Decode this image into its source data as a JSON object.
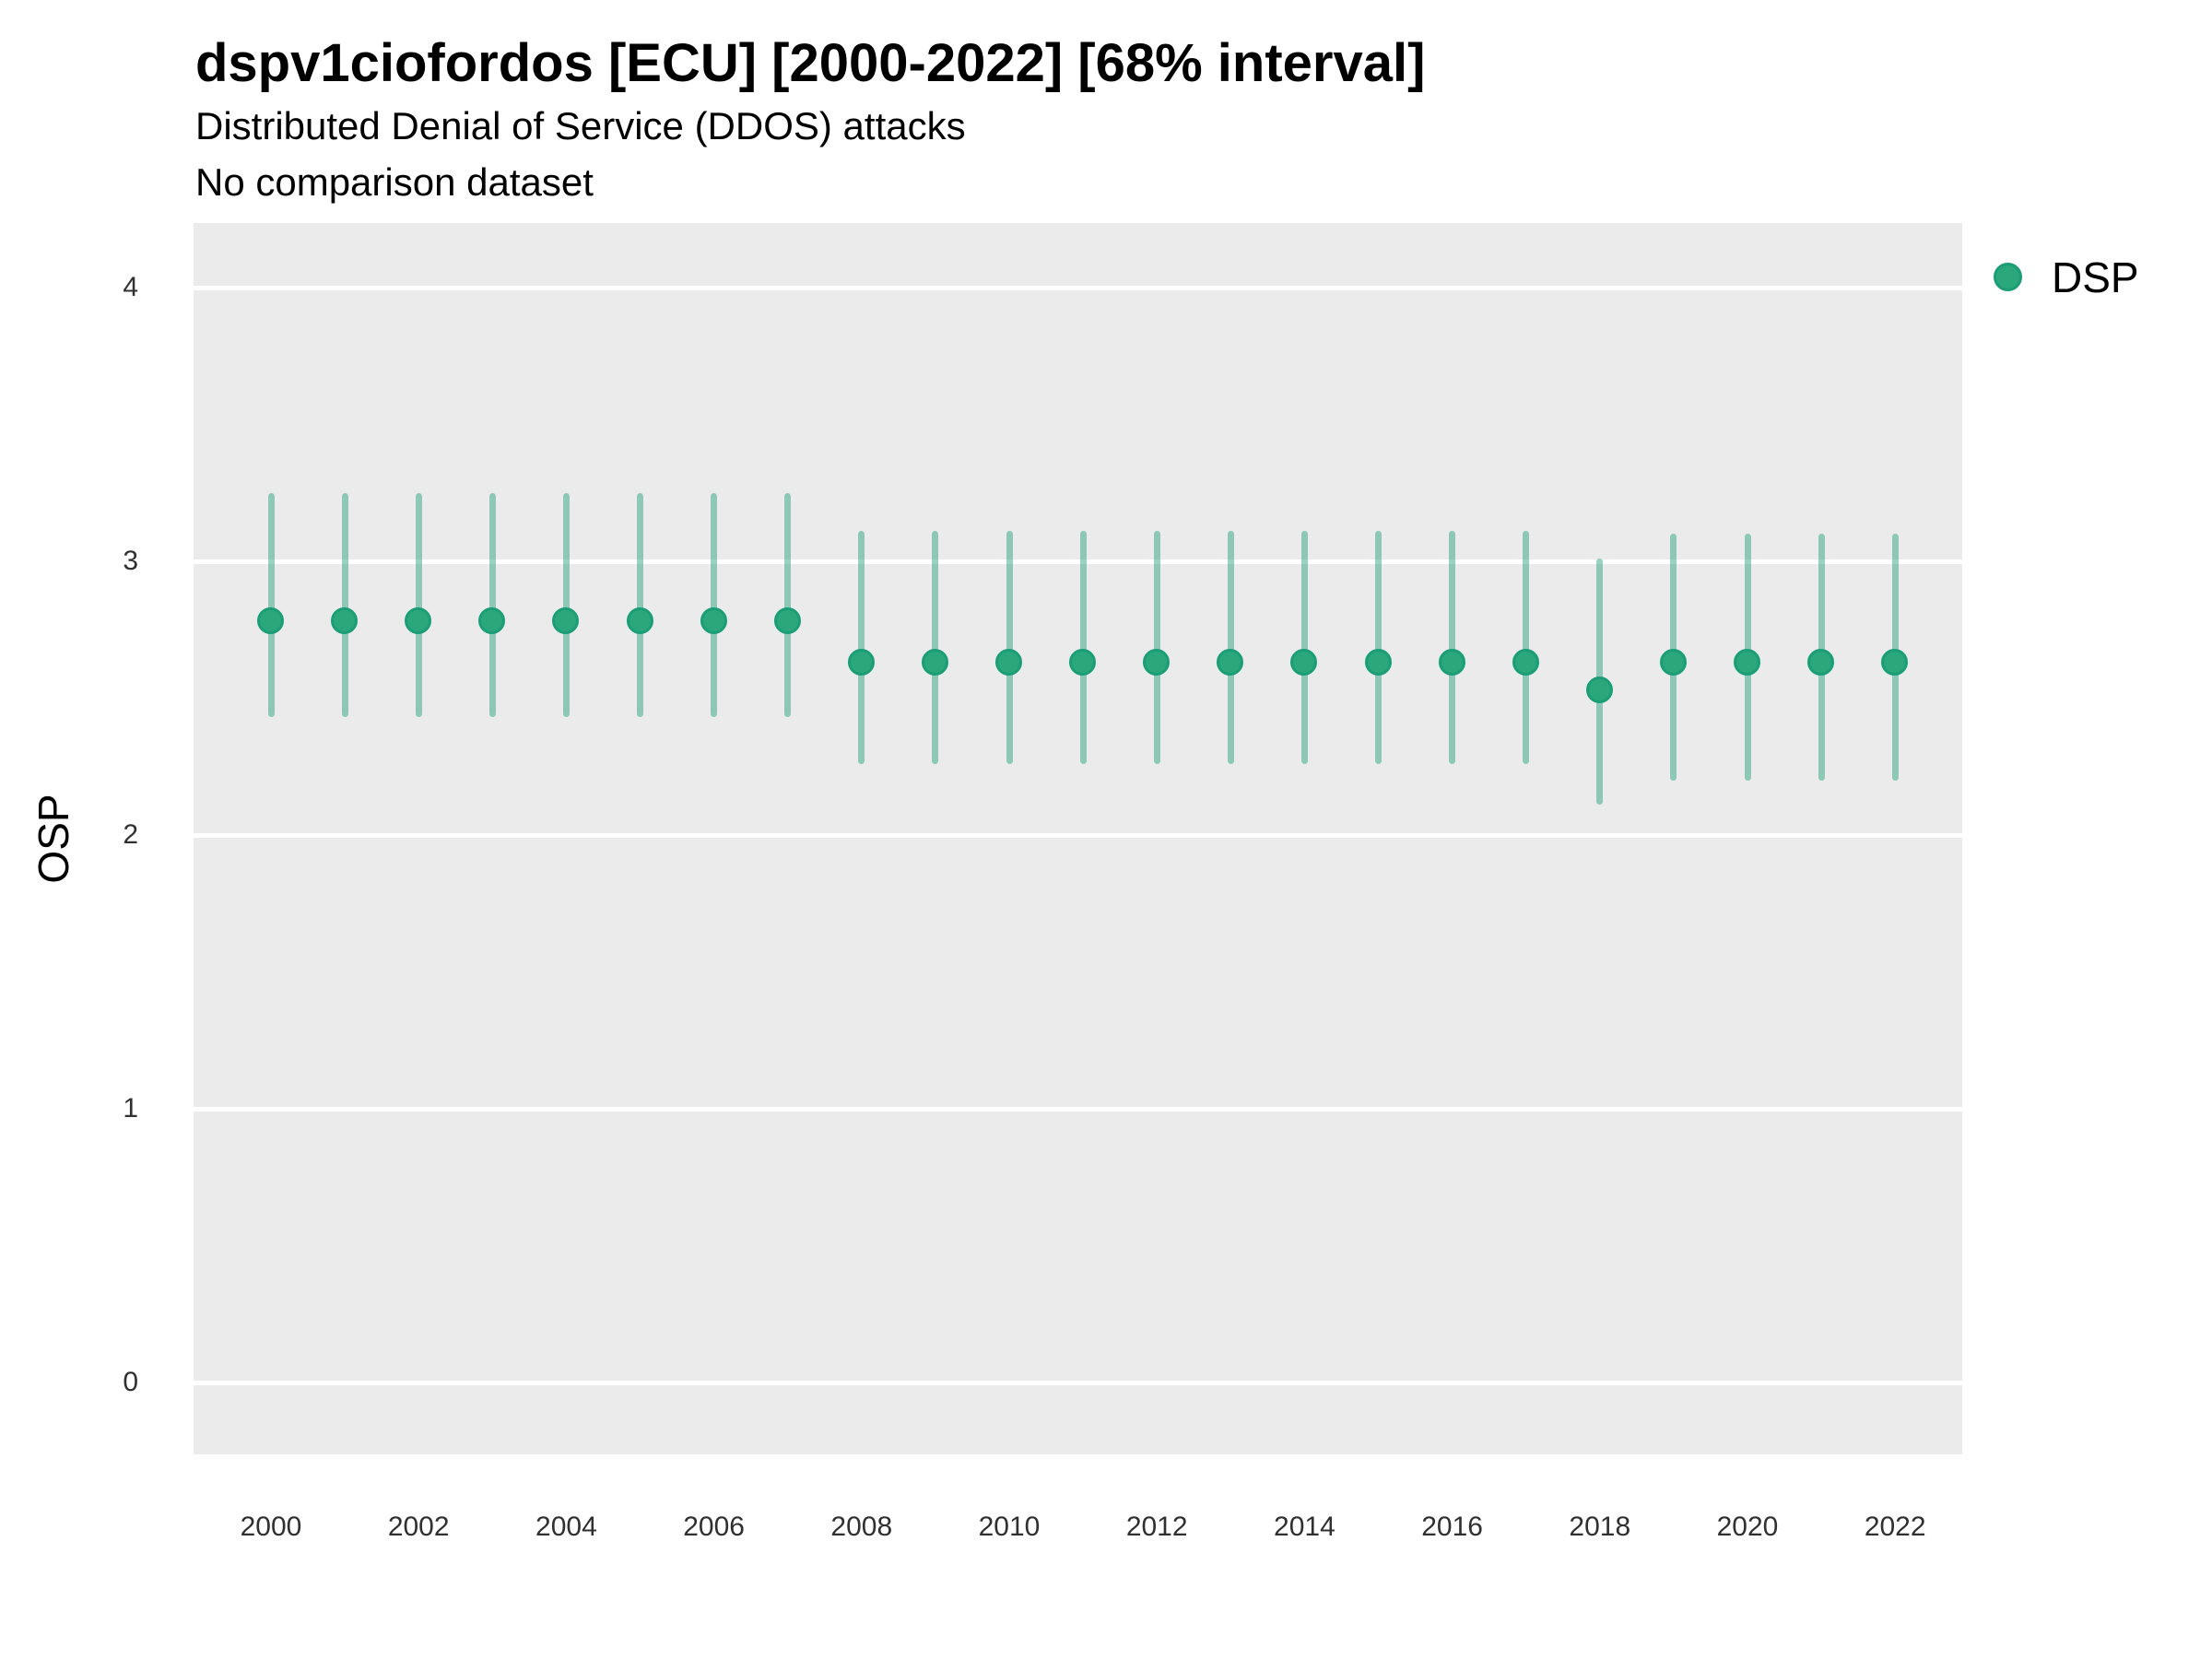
{
  "title": "dspv1ciofordos [ECU] [2000-2022] [68% interval]",
  "subtitle_line1": "Distributed Denial of Service (DDOS) attacks",
  "subtitle_line2": "No comparison dataset",
  "legend": {
    "label": "DSP"
  },
  "colors": {
    "panel_bg": "#EBEBEB",
    "gridline": "#FFFFFF",
    "point_fill": "#2BA87B",
    "point_stroke": "#1B9E77",
    "interval": "rgba(27,158,119,0.45)",
    "tick_text": "#303030"
  },
  "chart_data": {
    "type": "scatter",
    "title": "dspv1ciofordos [ECU] [2000-2022] [68% interval]",
    "subtitle": "Distributed Denial of Service (DDOS) attacks",
    "note": "No comparison dataset",
    "interval_label": "68% interval",
    "xlabel": "",
    "ylabel": "OSP",
    "legend_position": "right",
    "grid": "horizontal-major",
    "ylim": [
      -0.26,
      4.24
    ],
    "xlim": [
      1998.95,
      2023.05
    ],
    "yticks": [
      0,
      1,
      2,
      3,
      4
    ],
    "xticks": [
      2000,
      2002,
      2004,
      2006,
      2008,
      2010,
      2012,
      2014,
      2016,
      2018,
      2020,
      2022
    ],
    "series": [
      {
        "name": "DSP",
        "x": [
          2000,
          2001,
          2002,
          2003,
          2004,
          2005,
          2006,
          2007,
          2008,
          2009,
          2010,
          2011,
          2012,
          2013,
          2014,
          2015,
          2016,
          2017,
          2018,
          2019,
          2020,
          2021,
          2022
        ],
        "estimate": [
          2.78,
          2.78,
          2.78,
          2.78,
          2.78,
          2.78,
          2.78,
          2.78,
          2.63,
          2.63,
          2.63,
          2.63,
          2.63,
          2.63,
          2.63,
          2.63,
          2.63,
          2.63,
          2.53,
          2.63,
          2.63,
          2.63,
          2.63
        ],
        "lower_68": [
          2.43,
          2.43,
          2.43,
          2.43,
          2.43,
          2.43,
          2.43,
          2.43,
          2.26,
          2.26,
          2.26,
          2.26,
          2.26,
          2.26,
          2.26,
          2.26,
          2.26,
          2.26,
          2.11,
          2.2,
          2.2,
          2.2,
          2.2
        ],
        "upper_68": [
          3.25,
          3.25,
          3.25,
          3.25,
          3.25,
          3.25,
          3.25,
          3.25,
          3.11,
          3.11,
          3.11,
          3.11,
          3.11,
          3.11,
          3.11,
          3.11,
          3.11,
          3.11,
          3.01,
          3.1,
          3.1,
          3.1,
          3.1
        ]
      }
    ]
  }
}
